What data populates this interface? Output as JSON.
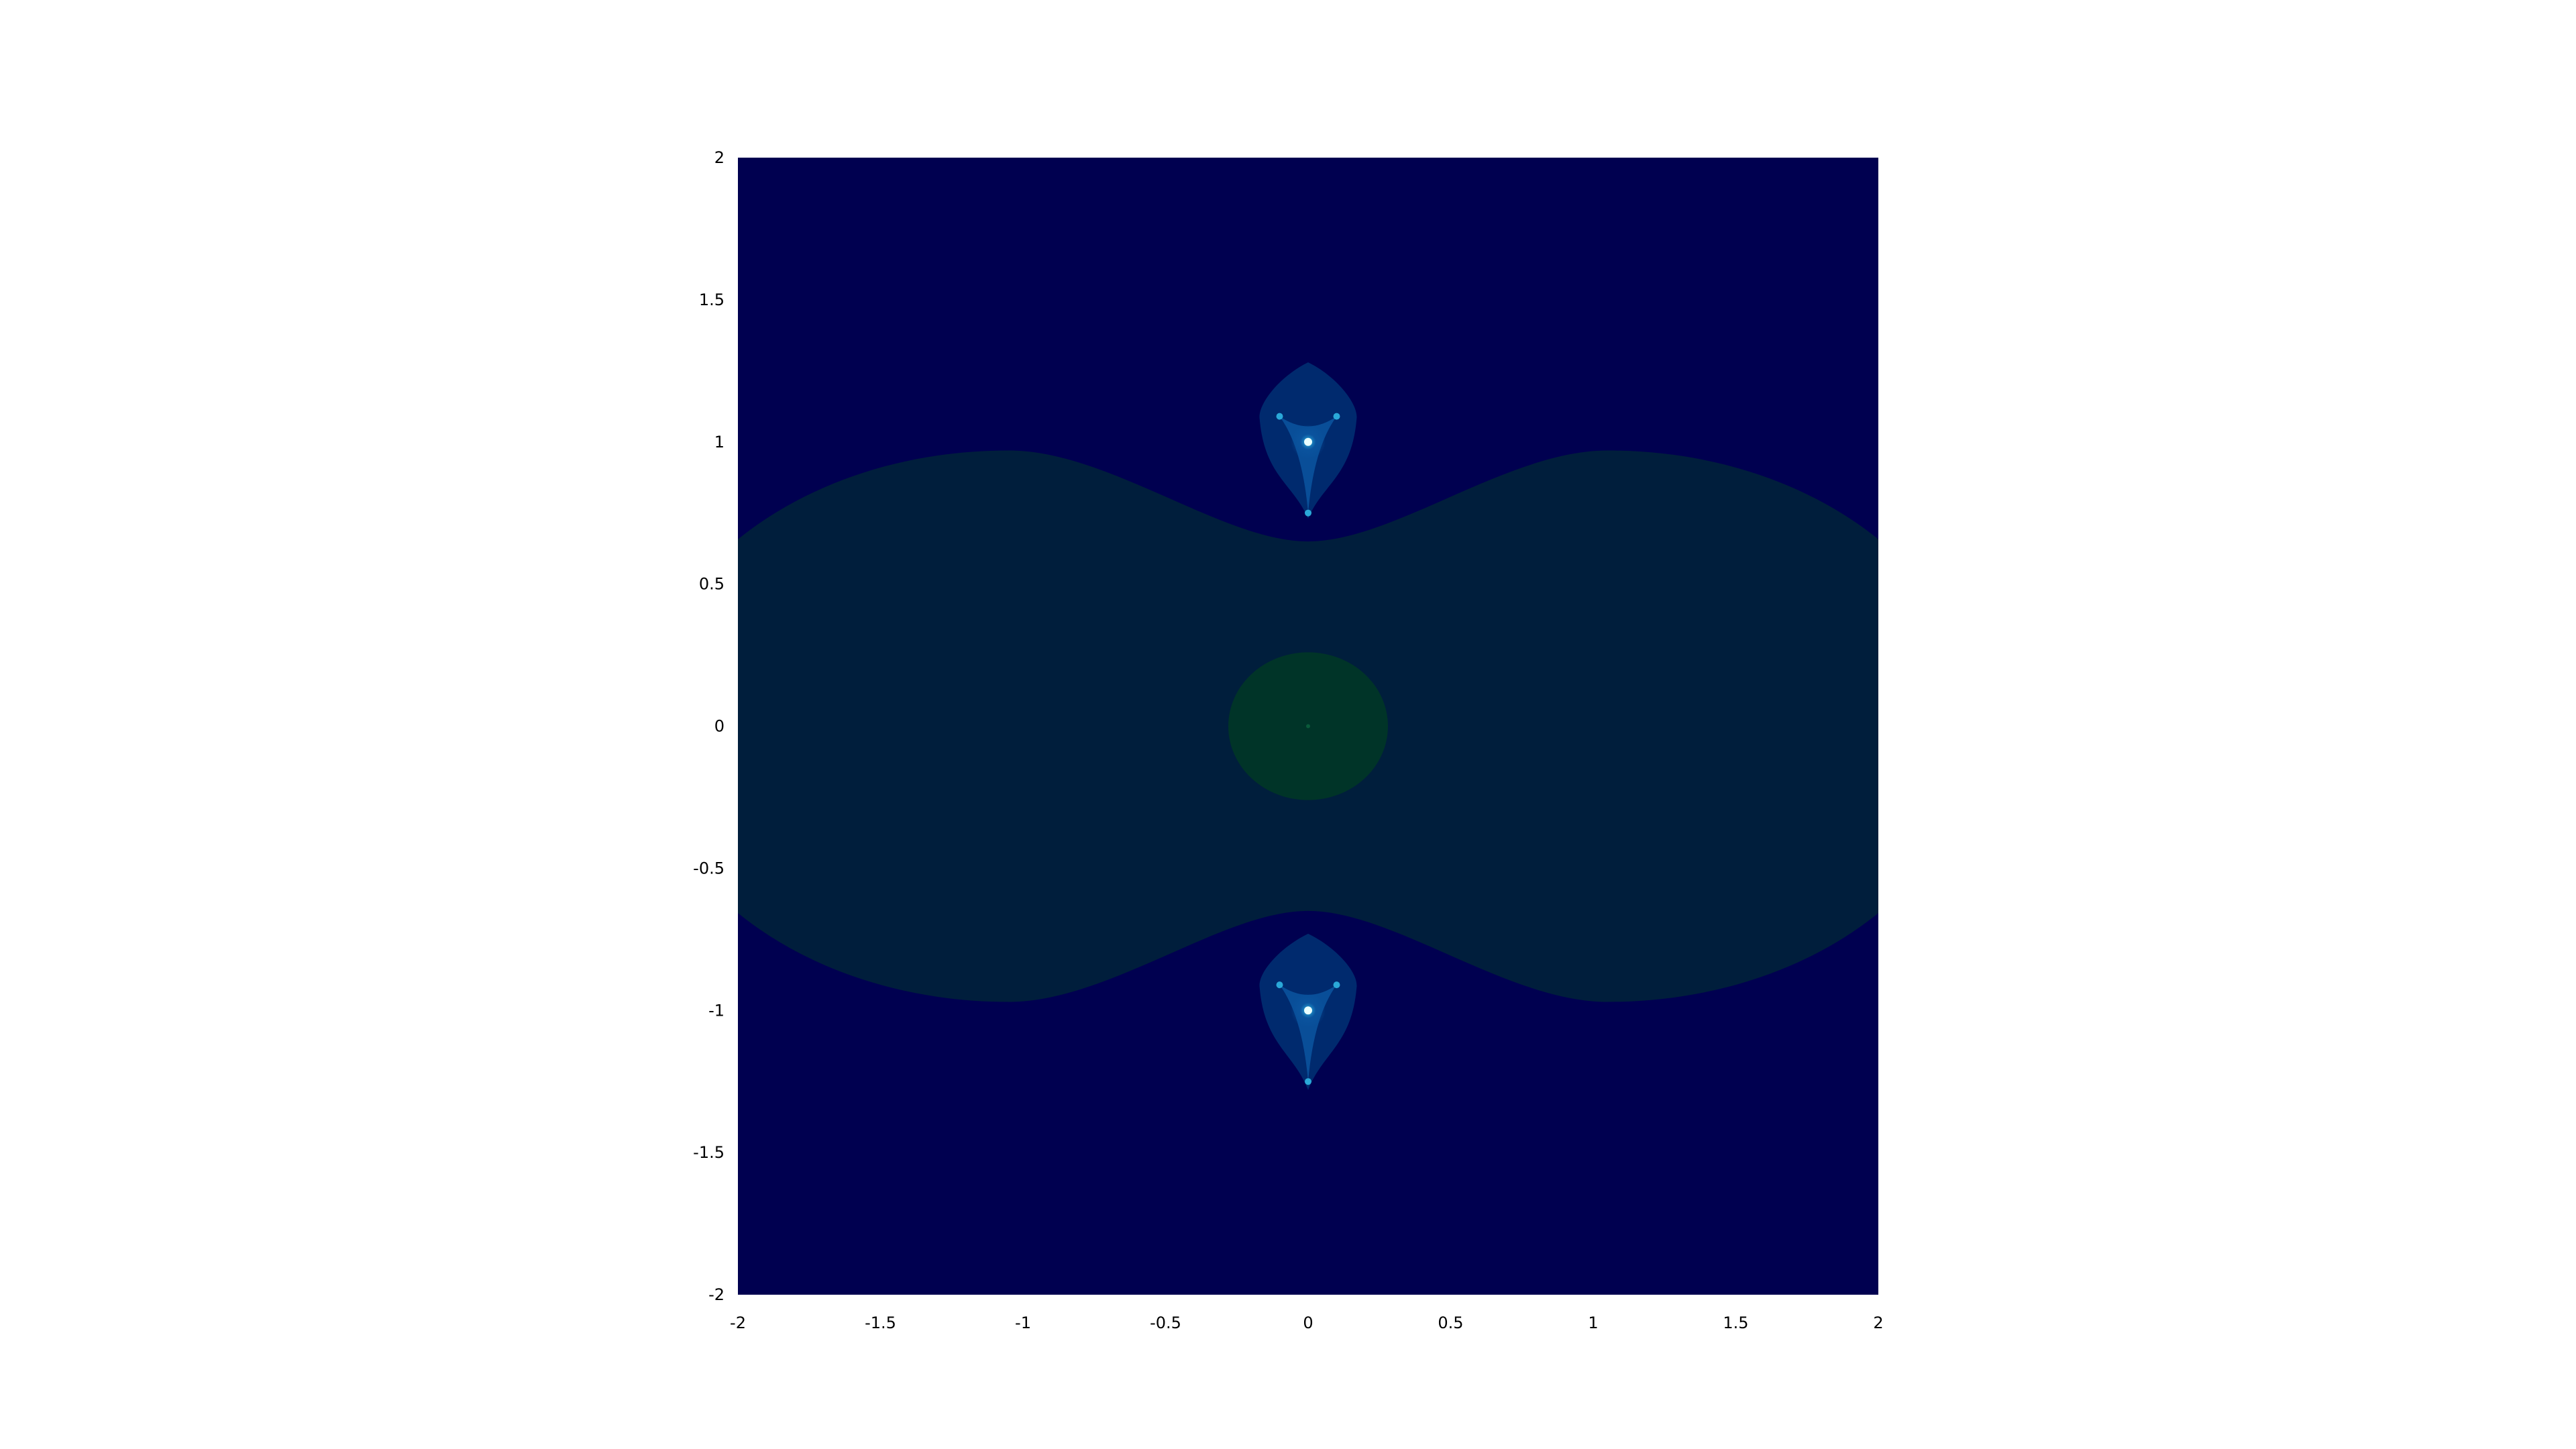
{
  "chart_data": {
    "type": "heatmap",
    "title": "",
    "xlabel": "",
    "ylabel": "",
    "xlim": [
      -2,
      2
    ],
    "ylim": [
      -2,
      2
    ],
    "x_ticks": [
      -2,
      -1.5,
      -1,
      -0.5,
      0,
      0.5,
      1,
      1.5,
      2
    ],
    "x_tick_labels": [
      "-2",
      "-1.5",
      "-1",
      "-0.5",
      "0",
      "0.5",
      "1",
      "1.5",
      "2"
    ],
    "y_ticks": [
      2,
      1.5,
      1,
      0.5,
      0,
      -0.5,
      -1,
      -1.5,
      -2
    ],
    "y_tick_labels": [
      "2",
      "1.5",
      "1",
      "0.5",
      "0",
      "-0.5",
      "-1",
      "-1.5",
      "-2"
    ],
    "grid": false,
    "legend": "none",
    "colors": {
      "background": "#000050",
      "region_outer": "#001e3c",
      "region_center": "#003428",
      "bulb_outer": "#002a6e",
      "bulb_inner": "#0a55a0",
      "bulb_core": "#2aa8d8"
    },
    "regions": [
      {
        "name": "central-lobe",
        "shape": "peanut",
        "lobe_centers_x": [
          -1.05,
          1.05
        ],
        "lobe_max_y": 0.97,
        "waist_y": 0.65,
        "color_key": "region_outer"
      },
      {
        "name": "central-disk",
        "shape": "ellipse",
        "center": [
          0,
          0
        ],
        "radii": [
          0.28,
          0.26
        ],
        "color_key": "region_center"
      },
      {
        "name": "upper-bulb",
        "shape": "teardrop",
        "center": [
          0,
          1
        ],
        "top_y": 1.28,
        "bottom_y": 0.73,
        "half_width": 0.17,
        "color_key": "bulb_outer"
      },
      {
        "name": "lower-bulb",
        "shape": "teardrop",
        "center": [
          0,
          -1
        ],
        "top_y": -0.73,
        "bottom_y": -1.28,
        "half_width": 0.17,
        "color_key": "bulb_outer"
      }
    ]
  }
}
